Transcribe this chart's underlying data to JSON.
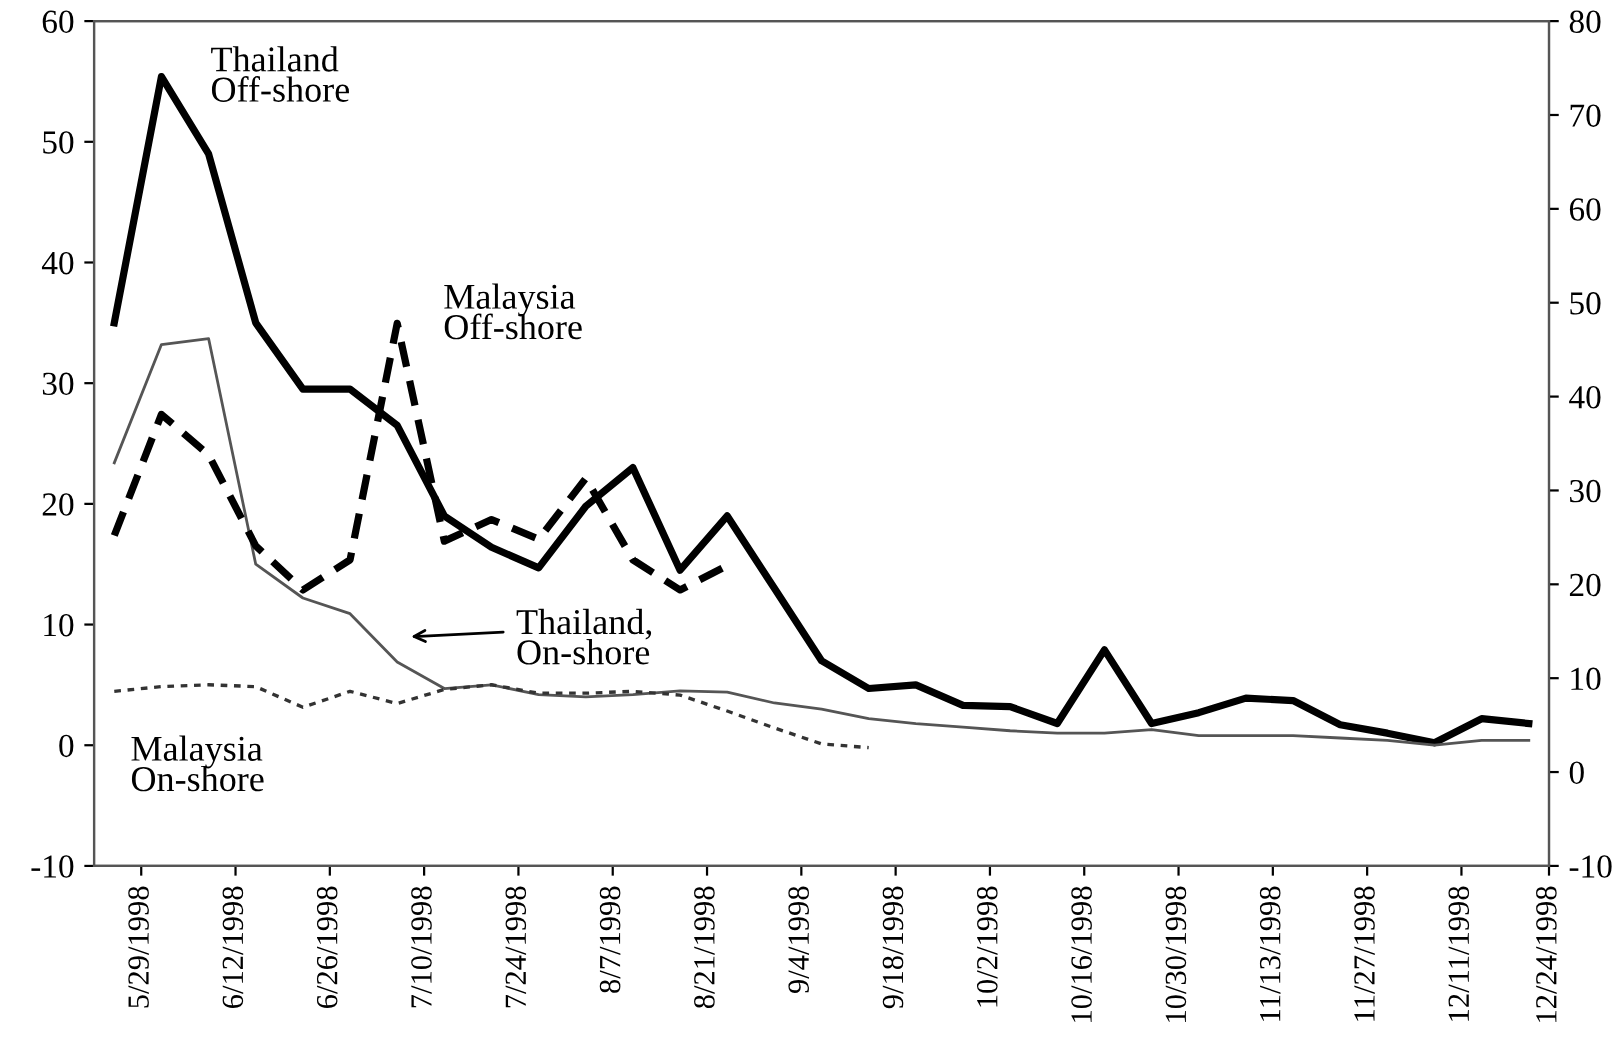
{
  "chart_data": {
    "type": "line",
    "x": [
      "1998-05-25",
      "1998-06-01",
      "1998-06-08",
      "1998-06-15",
      "1998-06-22",
      "1998-06-29",
      "1998-07-06",
      "1998-07-13",
      "1998-07-20",
      "1998-07-27",
      "1998-08-03",
      "1998-08-10",
      "1998-08-17",
      "1998-08-24",
      "1998-08-31",
      "1998-09-07",
      "1998-09-14",
      "1998-09-21",
      "1998-09-28",
      "1998-10-05",
      "1998-10-12",
      "1998-10-19",
      "1998-10-26",
      "1998-11-02",
      "1998-11-09",
      "1998-11-16",
      "1998-11-23",
      "1998-11-30",
      "1998-12-07",
      "1998-12-14",
      "1998-12-21"
    ],
    "series": [
      {
        "color": "#000000",
        "line_style": "solid",
        "values": [
          35,
          55.4,
          49,
          35,
          29.5,
          29.5,
          26.5,
          19,
          16.4,
          14.7,
          19.8,
          23,
          14.5,
          19,
          13,
          7,
          4.7,
          5,
          3.3,
          3.2,
          1.8,
          7.9,
          1.8,
          2.7,
          3.9,
          3.7,
          1.7,
          1.0,
          0.2,
          2.2,
          1.8
        ]
      },
      {
        "color": "#555555",
        "line_style": "solid",
        "values": [
          23.4,
          33.2,
          33.7,
          15,
          12.2,
          10.9,
          6.9,
          4.7,
          5,
          4.2,
          4.0,
          4.2,
          4.5,
          4.4,
          3.5,
          3.0,
          2.2,
          1.8,
          1.5,
          1.2,
          1.0,
          1.0,
          1.3,
          0.8,
          0.8,
          0.8,
          0.6,
          0.4,
          0,
          0.4,
          0.4
        ]
      },
      {
        "color": "#000000",
        "line_style": "dashed",
        "axis": "y2",
        "values": [
          25.2,
          38.1,
          33.8,
          24.1,
          19.4,
          22.6,
          47.8,
          24.6,
          26.9,
          24.8,
          31.3,
          22.6,
          19.4,
          22.0,
          null,
          null,
          null,
          null,
          null,
          null,
          null,
          null,
          null,
          null,
          null,
          null,
          null,
          null,
          null,
          null,
          null
        ]
      },
      {
        "color": "#333333",
        "line_style": "dotted",
        "axis": "y2",
        "values": [
          8.6,
          9.1,
          9.3,
          9.1,
          6.9,
          8.6,
          7.3,
          8.8,
          9.3,
          8.4,
          8.4,
          8.6,
          8.2,
          6.5,
          4.7,
          3.0,
          2.6,
          null,
          null,
          null,
          null,
          null,
          null,
          null,
          null,
          null,
          null,
          null,
          null,
          null,
          null
        ]
      }
    ],
    "xlim": [
      "1998-05-22",
      "1998-12-24"
    ],
    "xticks": [
      {
        "value": "1998-05-29",
        "label": "5/29/1998"
      },
      {
        "value": "1998-06-12",
        "label": "6/12/1998"
      },
      {
        "value": "1998-06-26",
        "label": "6/26/1998"
      },
      {
        "value": "1998-07-10",
        "label": "7/10/1998"
      },
      {
        "value": "1998-07-24",
        "label": "7/24/1998"
      },
      {
        "value": "1998-08-07",
        "label": "8/7/1998"
      },
      {
        "value": "1998-08-21",
        "label": "8/21/1998"
      },
      {
        "value": "1998-09-04",
        "label": "9/4/1998"
      },
      {
        "value": "1998-09-18",
        "label": "9/18/1998"
      },
      {
        "value": "1998-10-02",
        "label": "10/2/1998"
      },
      {
        "value": "1998-10-16",
        "label": "10/16/1998"
      },
      {
        "value": "1998-10-30",
        "label": "10/30/1998"
      },
      {
        "value": "1998-11-13",
        "label": "11/13/1998"
      },
      {
        "value": "1998-11-27",
        "label": "11/27/1998"
      },
      {
        "value": "1998-12-11",
        "label": "12/11/1998"
      },
      {
        "value": "1998-12-24",
        "label": "12/24/1998"
      }
    ],
    "ylim": [
      -10,
      60
    ],
    "yticks": [
      -10,
      0,
      10,
      20,
      30,
      40,
      50,
      60
    ],
    "y2lim": [
      -10,
      80
    ],
    "y2ticks": [
      -10,
      0,
      10,
      20,
      30,
      40,
      50,
      60,
      70,
      80
    ],
    "grid": false,
    "legend": false,
    "annotations": [
      "Thailand\nOff-shore",
      "Malaysia\nOff-shore",
      "Thailand,\nOn-shore",
      "Malaysia\nOn-shore"
    ]
  }
}
